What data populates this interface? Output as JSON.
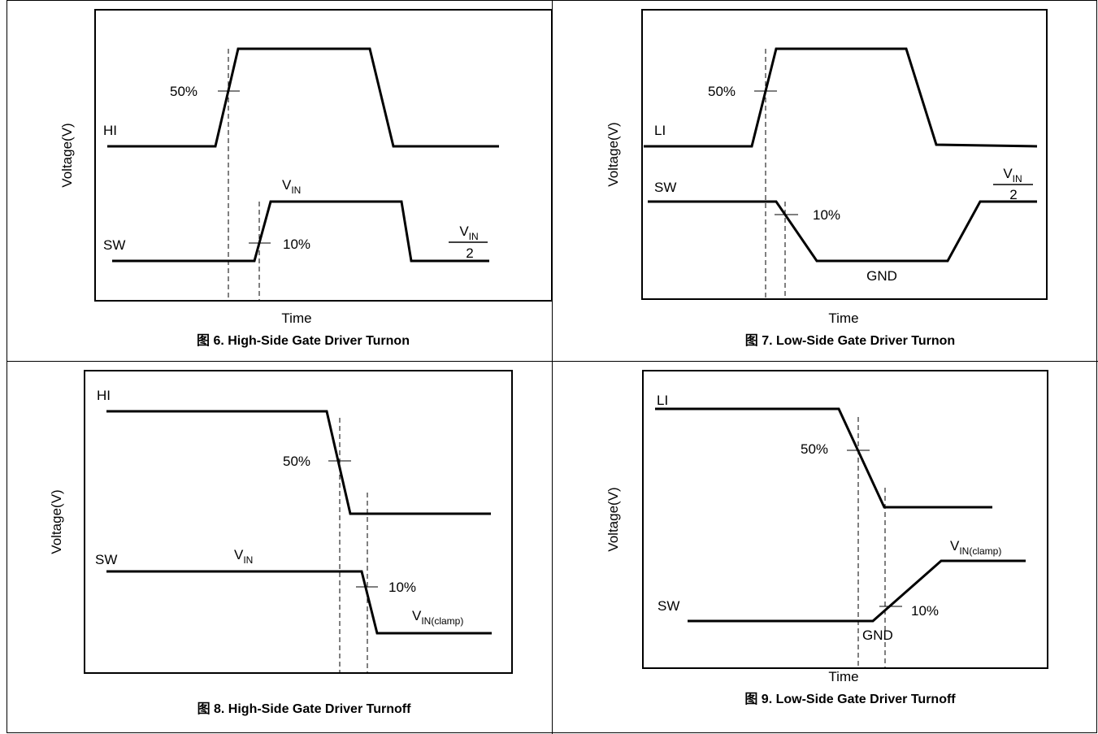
{
  "common": {
    "ylabel": "Voltage(V)",
    "xlabel": "Time"
  },
  "fig6": {
    "caption": "图 6. High-Side Gate Driver Turnon",
    "sig1": "HI",
    "sig2": "SW",
    "pct1": "50%",
    "pct2": "10%",
    "v_main": "V",
    "v_sub": "IN",
    "frac_num_main": "V",
    "frac_num_sub": "IN",
    "frac_den": "2"
  },
  "fig7": {
    "caption": "图 7. Low-Side Gate Driver Turnon",
    "sig1": "LI",
    "sig2": "SW",
    "pct1": "50%",
    "pct2": "10%",
    "gnd": "GND",
    "frac_num_main": "V",
    "frac_num_sub": "IN",
    "frac_den": "2"
  },
  "fig8": {
    "caption": "图 8. High-Side Gate Driver Turnoff",
    "sig1": "HI",
    "sig2": "SW",
    "pct1": "50%",
    "pct2": "10%",
    "v_main": "V",
    "v_sub": "IN",
    "vclamp_main": "V",
    "vclamp_sub": "IN(clamp)"
  },
  "fig9": {
    "caption": "图 9. Low-Side Gate Driver Turnoff",
    "sig1": "LI",
    "sig2": "SW",
    "pct1": "50%",
    "pct2": "10%",
    "gnd": "GND",
    "vclamp_main": "V",
    "vclamp_sub": "IN(clamp)"
  }
}
